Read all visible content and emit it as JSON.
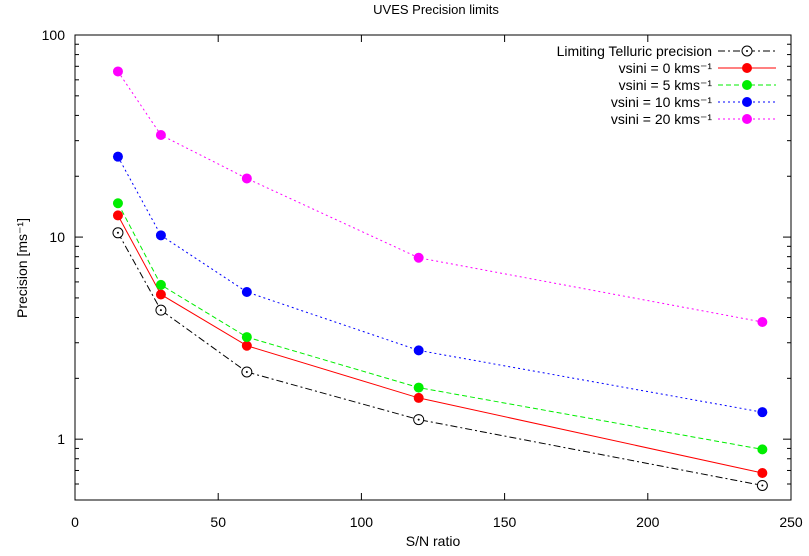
{
  "chart_data": {
    "type": "line",
    "title": "UVES Precision limits",
    "xlabel": "S/N ratio",
    "ylabel": "Precision [ms⁻¹]",
    "xlim": [
      0,
      250
    ],
    "ylim": [
      0.5,
      100
    ],
    "y_scale": "log",
    "x_ticks": [
      0,
      50,
      100,
      150,
      200,
      250
    ],
    "y_ticks": [
      1,
      10,
      100
    ],
    "y_tick_labels": [
      "1",
      "10",
      "100"
    ],
    "legend_position": "top-right",
    "x": [
      15,
      30,
      60,
      120,
      240
    ],
    "series": [
      {
        "name": "Limiting Telluric precision",
        "values": [
          10.5,
          4.35,
          2.15,
          1.25,
          0.59
        ],
        "color": "#000000",
        "dash": "dash-dot",
        "marker": "open-circle"
      },
      {
        "name": "vsini = 0 kms⁻¹",
        "values": [
          12.8,
          5.2,
          2.9,
          1.6,
          0.68
        ],
        "color": "#ff0000",
        "dash": "solid",
        "marker": "filled-circle"
      },
      {
        "name": "vsini = 5 kms⁻¹",
        "values": [
          14.7,
          5.8,
          3.2,
          1.8,
          0.89
        ],
        "color": "#00ee00",
        "dash": "dashed",
        "marker": "filled-circle"
      },
      {
        "name": "vsini = 10 kms⁻¹",
        "values": [
          25.0,
          10.2,
          5.35,
          2.75,
          1.36
        ],
        "color": "#0000ff",
        "dash": "dotted",
        "marker": "filled-circle"
      },
      {
        "name": "vsini = 20 kms⁻¹",
        "values": [
          66.0,
          32.0,
          19.5,
          7.9,
          3.8
        ],
        "color": "#ff00ff",
        "dash": "dotted",
        "marker": "filled-circle"
      }
    ]
  }
}
